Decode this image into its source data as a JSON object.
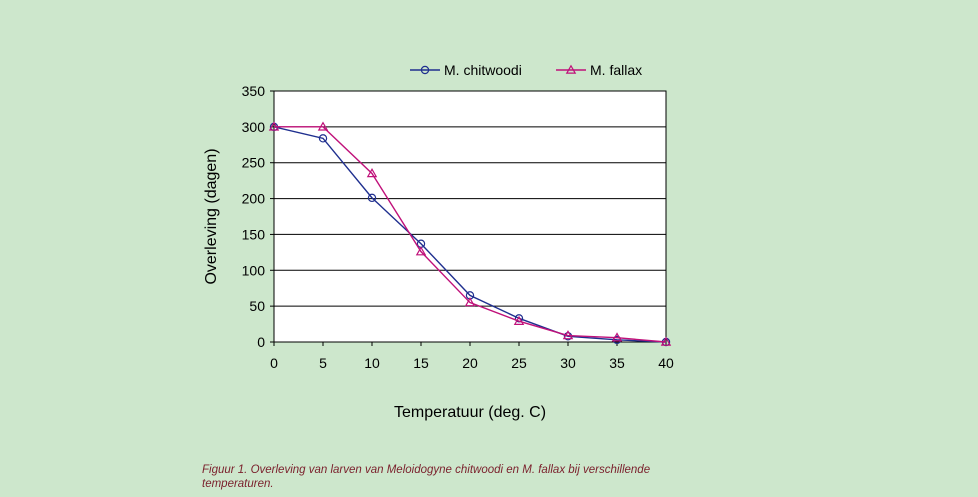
{
  "chart_data": {
    "type": "line",
    "xlabel": "Temperatuur (deg. C)",
    "ylabel": "Overleving (dagen)",
    "x": [
      0,
      5,
      10,
      15,
      20,
      25,
      30,
      35,
      40
    ],
    "xlim": [
      0,
      40
    ],
    "ylim": [
      0,
      350
    ],
    "x_ticks": [
      0,
      5,
      10,
      15,
      20,
      25,
      30,
      35,
      40
    ],
    "y_ticks": [
      0,
      50,
      100,
      150,
      200,
      250,
      300,
      350
    ],
    "grid": "horizontal",
    "legend_position": "top",
    "series": [
      {
        "name": "M. chitwoodi",
        "color": "#1f2f8f",
        "marker": "circle",
        "values": [
          300,
          284,
          201,
          137,
          65,
          33,
          8,
          3,
          0
        ]
      },
      {
        "name": "M. fallax",
        "color": "#c0117a",
        "marker": "triangle",
        "values": [
          300,
          300,
          235,
          126,
          55,
          29,
          9,
          6,
          0
        ]
      }
    ]
  },
  "caption": "Figuur 1. Overleving van larven van Meloidogyne chitwoodi en M. fallax bij verschillende temperaturen."
}
